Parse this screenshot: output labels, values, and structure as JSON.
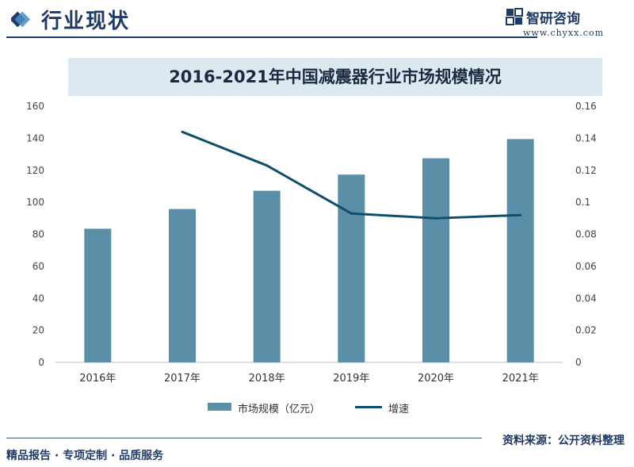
{
  "header": {
    "section_title": "行业现状",
    "brand_name": "智研咨询",
    "brand_url": "www.chyxx.com"
  },
  "chart_data": {
    "type": "bar",
    "title": "2016-2021年中国减震器行业市场规模情况",
    "categories": [
      "2016年",
      "2017年",
      "2018年",
      "2019年",
      "2020年",
      "2021年"
    ],
    "series": [
      {
        "name": "市场规模（亿元）",
        "kind": "bar",
        "axis": "left",
        "values": [
          83.5,
          95.8,
          107.2,
          117.3,
          127.5,
          139.5
        ]
      },
      {
        "name": "增速",
        "kind": "line",
        "axis": "right",
        "values": [
          null,
          0.144,
          0.123,
          0.093,
          0.09,
          0.092
        ]
      }
    ],
    "y_left": {
      "min": 0,
      "max": 160,
      "ticks": [
        0,
        20,
        40,
        60,
        80,
        100,
        120,
        140,
        160
      ],
      "tick_labels": [
        "0",
        "20",
        "40",
        "60",
        "80",
        "100",
        "120",
        "140",
        "160"
      ]
    },
    "y_right": {
      "min": 0,
      "max": 0.16,
      "ticks": [
        0,
        0.02,
        0.04,
        0.06,
        0.08,
        0.1,
        0.12,
        0.14,
        0.16
      ],
      "tick_labels": [
        "0",
        "0.02",
        "0.04",
        "0.06",
        "0.08",
        "0.1",
        "0.12",
        "0.14",
        "0.16"
      ]
    },
    "legend": [
      "市场规模（亿元）",
      "增速"
    ],
    "colors": {
      "bar": "#5b8fa8",
      "line": "#0f4f6e",
      "axis": "#bfbfbf"
    }
  },
  "footer": {
    "source": "资料来源：公开资料整理",
    "tagline": "精品报告 · 专项定制 · 品质服务"
  }
}
